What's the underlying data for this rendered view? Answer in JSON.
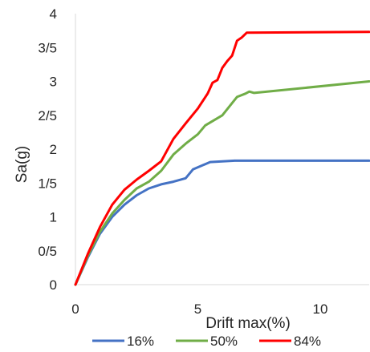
{
  "chart_data": {
    "type": "line",
    "title": "",
    "xlabel": "Drift max(%)",
    "ylabel": "Sa(g)",
    "xlim": [
      0,
      12
    ],
    "ylim": [
      0,
      4
    ],
    "x_ticks": [
      {
        "value": 0,
        "label": "0"
      },
      {
        "value": 5,
        "label": "5"
      },
      {
        "value": 10,
        "label": "10"
      }
    ],
    "y_ticks": [
      {
        "value": 0,
        "label": "0"
      },
      {
        "value": 0.5,
        "label": "0/5"
      },
      {
        "value": 1,
        "label": "1"
      },
      {
        "value": 1.5,
        "label": "1/5"
      },
      {
        "value": 2,
        "label": "2"
      },
      {
        "value": 2.5,
        "label": "2/5"
      },
      {
        "value": 3,
        "label": "3"
      },
      {
        "value": 3.5,
        "label": "3/5"
      },
      {
        "value": 4,
        "label": "4"
      }
    ],
    "grid": false,
    "legend_position": "bottom",
    "series": [
      {
        "name": "16%",
        "color": "#4472C4",
        "points": [
          [
            0,
            0
          ],
          [
            0.5,
            0.4
          ],
          [
            1,
            0.75
          ],
          [
            1.5,
            1
          ],
          [
            2,
            1.18
          ],
          [
            2.5,
            1.32
          ],
          [
            3,
            1.42
          ],
          [
            3.5,
            1.48
          ],
          [
            4,
            1.52
          ],
          [
            4.5,
            1.57
          ],
          [
            4.8,
            1.7
          ],
          [
            5.5,
            1.81
          ],
          [
            6.5,
            1.83
          ],
          [
            12,
            1.83
          ]
        ]
      },
      {
        "name": "50%",
        "color": "#70AD47",
        "points": [
          [
            0,
            0
          ],
          [
            0.5,
            0.42
          ],
          [
            1,
            0.78
          ],
          [
            1.5,
            1.05
          ],
          [
            2,
            1.25
          ],
          [
            2.5,
            1.42
          ],
          [
            3,
            1.52
          ],
          [
            3.5,
            1.68
          ],
          [
            4,
            1.92
          ],
          [
            4.5,
            2.08
          ],
          [
            5,
            2.22
          ],
          [
            5.3,
            2.35
          ],
          [
            6,
            2.5
          ],
          [
            6.6,
            2.77
          ],
          [
            6.95,
            2.82
          ],
          [
            7.1,
            2.85
          ],
          [
            7.3,
            2.83
          ],
          [
            12,
            3
          ]
        ]
      },
      {
        "name": "84%",
        "color": "#FF0000",
        "points": [
          [
            0,
            0
          ],
          [
            0.5,
            0.45
          ],
          [
            1,
            0.85
          ],
          [
            1.5,
            1.18
          ],
          [
            2,
            1.4
          ],
          [
            2.5,
            1.55
          ],
          [
            3,
            1.68
          ],
          [
            3.5,
            1.82
          ],
          [
            4,
            2.15
          ],
          [
            4.5,
            2.38
          ],
          [
            5,
            2.6
          ],
          [
            5.4,
            2.82
          ],
          [
            5.6,
            2.98
          ],
          [
            5.8,
            3.02
          ],
          [
            6,
            3.2
          ],
          [
            6.2,
            3.3
          ],
          [
            6.4,
            3.38
          ],
          [
            6.6,
            3.6
          ],
          [
            6.8,
            3.65
          ],
          [
            7,
            3.72
          ],
          [
            12,
            3.73
          ]
        ]
      }
    ]
  }
}
